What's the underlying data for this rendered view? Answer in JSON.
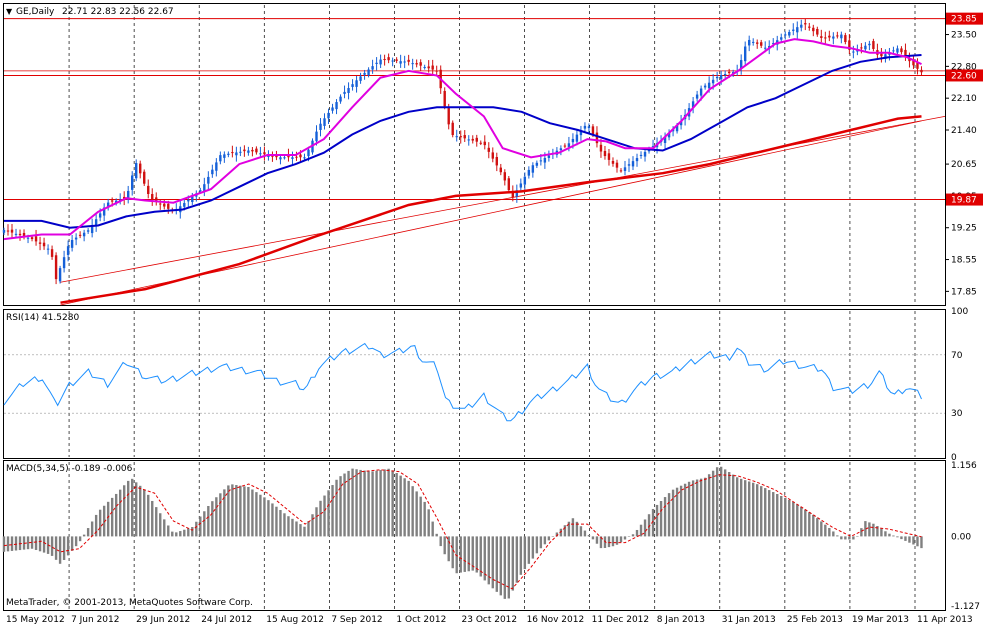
{
  "chart_data": {
    "type": "candlestick",
    "symbol": "GE,Daily",
    "ohlc_label": "22.71 22.83 22.56 22.67",
    "colors": {
      "bull": "#1560d8",
      "bear": "#d01010",
      "ma_fast": "#e000e0",
      "ma_mid": "#0000c8",
      "ma_slow": "#e00000",
      "level_line": "#e00000",
      "rsi": "#1e90ff",
      "macd_hist": "#808080",
      "macd_signal": "#e00000",
      "grid": "#000000"
    },
    "price_axis": {
      "min": 17.55,
      "max": 24.15,
      "ticks": [
        "23.50",
        "22.80",
        "22.10",
        "21.40",
        "20.65",
        "19.95",
        "19.25",
        "18.55",
        "17.85"
      ]
    },
    "level_labels": [
      {
        "value": 23.85,
        "label": "23.85"
      },
      {
        "value": 22.6,
        "label": "22.60"
      },
      {
        "value": 19.87,
        "label": "19.87"
      }
    ],
    "trendlines": [
      {
        "x1": 0.06,
        "y1": 18.05,
        "x2": 1.0,
        "y2": 21.7
      },
      {
        "x1": 0.06,
        "y1": 17.55,
        "x2": 0.975,
        "y2": 21.6
      }
    ],
    "date_labels": [
      "15 May 2012",
      "7 Jun 2012",
      "29 Jun 2012",
      "24 Jul 2012",
      "15 Aug 2012",
      "7 Sep 2012",
      "1 Oct 2012",
      "23 Oct 2012",
      "16 Nov 2012",
      "11 Dec 2012",
      "8 Jan 2013",
      "31 Jan 2013",
      "25 Feb 2013",
      "19 Mar 2013",
      "11 Apr 2013"
    ],
    "price_path": [
      [
        0,
        19.2
      ],
      [
        0.03,
        19.0
      ],
      [
        0.05,
        18.75
      ],
      [
        0.055,
        18.1
      ],
      [
        0.07,
        18.95
      ],
      [
        0.09,
        19.2
      ],
      [
        0.11,
        19.8
      ],
      [
        0.13,
        19.9
      ],
      [
        0.14,
        20.7
      ],
      [
        0.155,
        19.9
      ],
      [
        0.18,
        19.6
      ],
      [
        0.21,
        20.1
      ],
      [
        0.23,
        20.85
      ],
      [
        0.26,
        20.95
      ],
      [
        0.29,
        20.8
      ],
      [
        0.32,
        20.8
      ],
      [
        0.335,
        21.5
      ],
      [
        0.36,
        22.2
      ],
      [
        0.38,
        22.6
      ],
      [
        0.4,
        22.95
      ],
      [
        0.43,
        22.9
      ],
      [
        0.46,
        22.7
      ],
      [
        0.475,
        21.3
      ],
      [
        0.51,
        21.1
      ],
      [
        0.53,
        20.4
      ],
      [
        0.54,
        19.9
      ],
      [
        0.56,
        20.6
      ],
      [
        0.6,
        21.1
      ],
      [
        0.62,
        21.55
      ],
      [
        0.635,
        20.9
      ],
      [
        0.655,
        20.5
      ],
      [
        0.68,
        20.9
      ],
      [
        0.7,
        21.2
      ],
      [
        0.72,
        21.6
      ],
      [
        0.74,
        22.3
      ],
      [
        0.76,
        22.6
      ],
      [
        0.78,
        22.7
      ],
      [
        0.79,
        23.4
      ],
      [
        0.81,
        23.2
      ],
      [
        0.83,
        23.5
      ],
      [
        0.85,
        23.75
      ],
      [
        0.87,
        23.4
      ],
      [
        0.89,
        23.5
      ],
      [
        0.9,
        23.1
      ],
      [
        0.92,
        23.3
      ],
      [
        0.93,
        23.0
      ],
      [
        0.95,
        23.2
      ],
      [
        0.965,
        22.85
      ],
      [
        0.975,
        22.67
      ]
    ],
    "ma_fast": [
      [
        0,
        19.0
      ],
      [
        0.04,
        19.1
      ],
      [
        0.07,
        19.1
      ],
      [
        0.1,
        19.6
      ],
      [
        0.13,
        19.9
      ],
      [
        0.15,
        19.85
      ],
      [
        0.18,
        19.8
      ],
      [
        0.22,
        20.1
      ],
      [
        0.25,
        20.65
      ],
      [
        0.28,
        20.85
      ],
      [
        0.31,
        20.85
      ],
      [
        0.34,
        21.2
      ],
      [
        0.37,
        21.9
      ],
      [
        0.4,
        22.55
      ],
      [
        0.43,
        22.7
      ],
      [
        0.46,
        22.6
      ],
      [
        0.48,
        22.2
      ],
      [
        0.51,
        21.7
      ],
      [
        0.53,
        21.0
      ],
      [
        0.56,
        20.8
      ],
      [
        0.59,
        20.9
      ],
      [
        0.62,
        21.2
      ],
      [
        0.64,
        21.15
      ],
      [
        0.66,
        21.0
      ],
      [
        0.69,
        21.0
      ],
      [
        0.72,
        21.6
      ],
      [
        0.75,
        22.3
      ],
      [
        0.78,
        22.7
      ],
      [
        0.8,
        23.0
      ],
      [
        0.82,
        23.3
      ],
      [
        0.84,
        23.4
      ],
      [
        0.86,
        23.35
      ],
      [
        0.88,
        23.25
      ],
      [
        0.9,
        23.2
      ],
      [
        0.92,
        23.1
      ],
      [
        0.94,
        23.1
      ],
      [
        0.96,
        23.0
      ],
      [
        0.975,
        22.85
      ]
    ],
    "ma_mid": [
      [
        0,
        19.4
      ],
      [
        0.04,
        19.4
      ],
      [
        0.07,
        19.25
      ],
      [
        0.1,
        19.3
      ],
      [
        0.13,
        19.5
      ],
      [
        0.16,
        19.6
      ],
      [
        0.19,
        19.65
      ],
      [
        0.22,
        19.85
      ],
      [
        0.25,
        20.15
      ],
      [
        0.28,
        20.45
      ],
      [
        0.31,
        20.65
      ],
      [
        0.34,
        20.9
      ],
      [
        0.37,
        21.3
      ],
      [
        0.4,
        21.6
      ],
      [
        0.43,
        21.8
      ],
      [
        0.46,
        21.9
      ],
      [
        0.49,
        21.9
      ],
      [
        0.52,
        21.9
      ],
      [
        0.55,
        21.8
      ],
      [
        0.58,
        21.55
      ],
      [
        0.61,
        21.4
      ],
      [
        0.64,
        21.2
      ],
      [
        0.67,
        21.0
      ],
      [
        0.7,
        20.95
      ],
      [
        0.73,
        21.2
      ],
      [
        0.76,
        21.55
      ],
      [
        0.79,
        21.9
      ],
      [
        0.82,
        22.1
      ],
      [
        0.85,
        22.4
      ],
      [
        0.88,
        22.7
      ],
      [
        0.91,
        22.9
      ],
      [
        0.94,
        23.0
      ],
      [
        0.975,
        23.05
      ]
    ],
    "ma_slow": [
      [
        0.06,
        17.6
      ],
      [
        0.15,
        17.9
      ],
      [
        0.25,
        18.45
      ],
      [
        0.33,
        19.05
      ],
      [
        0.38,
        19.4
      ],
      [
        0.43,
        19.75
      ],
      [
        0.48,
        19.95
      ],
      [
        0.55,
        20.05
      ],
      [
        0.62,
        20.25
      ],
      [
        0.7,
        20.45
      ],
      [
        0.75,
        20.65
      ],
      [
        0.8,
        20.9
      ],
      [
        0.85,
        21.15
      ],
      [
        0.9,
        21.4
      ],
      [
        0.95,
        21.65
      ],
      [
        0.975,
        21.7
      ]
    ],
    "rsi": {
      "label": "RSI(14) 41.5280",
      "axis_ticks": [
        "100",
        "70",
        "30",
        "0"
      ],
      "levels": [
        70,
        30
      ],
      "path": [
        [
          0,
          38
        ],
        [
          0.02,
          50
        ],
        [
          0.04,
          55
        ],
        [
          0.05,
          42
        ],
        [
          0.055,
          35
        ],
        [
          0.07,
          50
        ],
        [
          0.09,
          58
        ],
        [
          0.11,
          50
        ],
        [
          0.13,
          65
        ],
        [
          0.15,
          55
        ],
        [
          0.17,
          52
        ],
        [
          0.2,
          57
        ],
        [
          0.23,
          62
        ],
        [
          0.25,
          60
        ],
        [
          0.27,
          58
        ],
        [
          0.29,
          52
        ],
        [
          0.31,
          50
        ],
        [
          0.32,
          46
        ],
        [
          0.335,
          62
        ],
        [
          0.36,
          72
        ],
        [
          0.38,
          75
        ],
        [
          0.39,
          76
        ],
        [
          0.4,
          70
        ],
        [
          0.42,
          72
        ],
        [
          0.435,
          76
        ],
        [
          0.445,
          66
        ],
        [
          0.46,
          62
        ],
        [
          0.47,
          38
        ],
        [
          0.49,
          32
        ],
        [
          0.51,
          42
        ],
        [
          0.53,
          28
        ],
        [
          0.54,
          25
        ],
        [
          0.56,
          38
        ],
        [
          0.58,
          45
        ],
        [
          0.6,
          52
        ],
        [
          0.62,
          62
        ],
        [
          0.63,
          48
        ],
        [
          0.64,
          42
        ],
        [
          0.655,
          36
        ],
        [
          0.67,
          46
        ],
        [
          0.69,
          55
        ],
        [
          0.71,
          58
        ],
        [
          0.73,
          65
        ],
        [
          0.75,
          70
        ],
        [
          0.77,
          68
        ],
        [
          0.78,
          75
        ],
        [
          0.79,
          65
        ],
        [
          0.81,
          60
        ],
        [
          0.83,
          66
        ],
        [
          0.85,
          62
        ],
        [
          0.87,
          60
        ],
        [
          0.88,
          48
        ],
        [
          0.9,
          45
        ],
        [
          0.92,
          50
        ],
        [
          0.93,
          58
        ],
        [
          0.945,
          42
        ],
        [
          0.96,
          48
        ],
        [
          0.975,
          41.5
        ]
      ]
    },
    "macd": {
      "label": "MACD(5,34,5) -0.189 -0.006",
      "axis_ticks": [
        "1.156",
        "0.00",
        "-1.127"
      ],
      "axis_min": -1.127,
      "axis_max": 1.156,
      "hist": [
        [
          0,
          -0.25
        ],
        [
          0.03,
          -0.2
        ],
        [
          0.05,
          -0.3
        ],
        [
          0.06,
          -0.45
        ],
        [
          0.08,
          -0.1
        ],
        [
          0.1,
          0.4
        ],
        [
          0.12,
          0.7
        ],
        [
          0.135,
          0.95
        ],
        [
          0.15,
          0.75
        ],
        [
          0.165,
          0.4
        ],
        [
          0.18,
          0.05
        ],
        [
          0.2,
          0.15
        ],
        [
          0.22,
          0.55
        ],
        [
          0.24,
          0.85
        ],
        [
          0.26,
          0.8
        ],
        [
          0.28,
          0.6
        ],
        [
          0.3,
          0.35
        ],
        [
          0.32,
          0.15
        ],
        [
          0.335,
          0.55
        ],
        [
          0.355,
          0.95
        ],
        [
          0.37,
          1.1
        ],
        [
          0.39,
          1.05
        ],
        [
          0.41,
          1.1
        ],
        [
          0.43,
          0.9
        ],
        [
          0.45,
          0.5
        ],
        [
          0.465,
          -0.2
        ],
        [
          0.48,
          -0.6
        ],
        [
          0.5,
          -0.55
        ],
        [
          0.52,
          -0.85
        ],
        [
          0.535,
          -1.05
        ],
        [
          0.55,
          -0.6
        ],
        [
          0.57,
          -0.2
        ],
        [
          0.59,
          0.1
        ],
        [
          0.605,
          0.3
        ],
        [
          0.62,
          0.05
        ],
        [
          0.635,
          -0.2
        ],
        [
          0.65,
          -0.15
        ],
        [
          0.67,
          0.05
        ],
        [
          0.69,
          0.45
        ],
        [
          0.71,
          0.75
        ],
        [
          0.73,
          0.9
        ],
        [
          0.745,
          0.95
        ],
        [
          0.76,
          1.15
        ],
        [
          0.78,
          0.95
        ],
        [
          0.8,
          0.85
        ],
        [
          0.82,
          0.7
        ],
        [
          0.84,
          0.55
        ],
        [
          0.86,
          0.35
        ],
        [
          0.88,
          0.1
        ],
        [
          0.89,
          -0.05
        ],
        [
          0.905,
          -0.05
        ],
        [
          0.915,
          0.25
        ],
        [
          0.925,
          0.2
        ],
        [
          0.94,
          0.05
        ],
        [
          0.975,
          -0.19
        ]
      ],
      "signal": [
        [
          0,
          -0.15
        ],
        [
          0.04,
          -0.08
        ],
        [
          0.06,
          -0.25
        ],
        [
          0.08,
          -0.2
        ],
        [
          0.1,
          0.1
        ],
        [
          0.12,
          0.5
        ],
        [
          0.14,
          0.8
        ],
        [
          0.16,
          0.7
        ],
        [
          0.18,
          0.25
        ],
        [
          0.2,
          0.1
        ],
        [
          0.22,
          0.35
        ],
        [
          0.24,
          0.75
        ],
        [
          0.26,
          0.85
        ],
        [
          0.28,
          0.7
        ],
        [
          0.3,
          0.45
        ],
        [
          0.32,
          0.2
        ],
        [
          0.34,
          0.4
        ],
        [
          0.36,
          0.85
        ],
        [
          0.38,
          1.05
        ],
        [
          0.4,
          1.08
        ],
        [
          0.42,
          1.05
        ],
        [
          0.44,
          0.85
        ],
        [
          0.46,
          0.3
        ],
        [
          0.48,
          -0.3
        ],
        [
          0.5,
          -0.5
        ],
        [
          0.52,
          -0.7
        ],
        [
          0.54,
          -0.85
        ],
        [
          0.56,
          -0.5
        ],
        [
          0.58,
          -0.1
        ],
        [
          0.6,
          0.2
        ],
        [
          0.62,
          0.2
        ],
        [
          0.64,
          -0.1
        ],
        [
          0.66,
          -0.1
        ],
        [
          0.68,
          0.05
        ],
        [
          0.7,
          0.45
        ],
        [
          0.72,
          0.75
        ],
        [
          0.74,
          0.9
        ],
        [
          0.76,
          1.0
        ],
        [
          0.78,
          0.98
        ],
        [
          0.8,
          0.88
        ],
        [
          0.82,
          0.75
        ],
        [
          0.84,
          0.55
        ],
        [
          0.86,
          0.35
        ],
        [
          0.88,
          0.15
        ],
        [
          0.9,
          0.0
        ],
        [
          0.92,
          0.15
        ],
        [
          0.94,
          0.12
        ],
        [
          0.975,
          -0.006
        ]
      ]
    },
    "copyright": "MetaTrader, © 2001-2013, MetaQuotes Software Corp."
  }
}
